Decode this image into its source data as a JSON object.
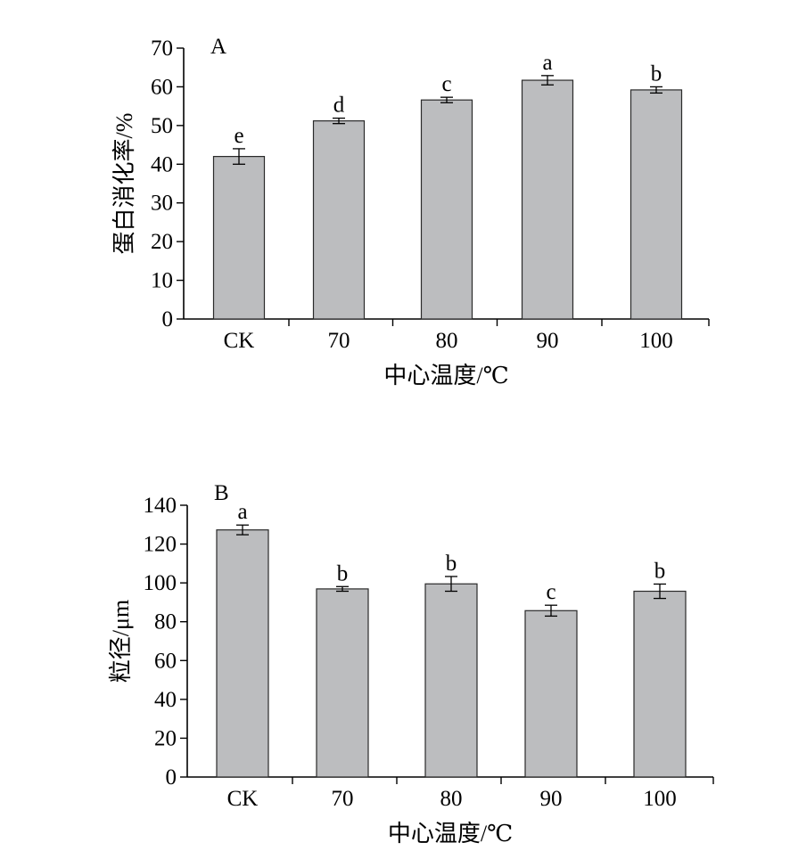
{
  "colors": {
    "bar_fill": "#bcbdbf",
    "bar_stroke": "#2a2a2a",
    "axis": "#000000"
  },
  "chart_data": [
    {
      "type": "bar",
      "panel_label": "A",
      "categories": [
        "CK",
        "70",
        "80",
        "90",
        "100"
      ],
      "values": [
        42.0,
        51.2,
        56.6,
        61.7,
        59.2
      ],
      "errors": [
        2.0,
        0.7,
        0.7,
        1.2,
        0.8
      ],
      "significance": [
        "e",
        "d",
        "c",
        "a",
        "b"
      ],
      "xlabel": "中心温度/℃",
      "ylabel": "蛋白消化率/%",
      "ylim": [
        0,
        70
      ],
      "yticks": [
        0,
        10,
        20,
        30,
        40,
        50,
        60,
        70
      ],
      "grid": false,
      "legend": "none"
    },
    {
      "type": "bar",
      "panel_label": "B",
      "categories": [
        "CK",
        "70",
        "80",
        "90",
        "100"
      ],
      "values": [
        127.3,
        96.9,
        99.5,
        85.7,
        95.7
      ],
      "errors": [
        2.5,
        1.2,
        3.8,
        2.8,
        3.7
      ],
      "significance": [
        "a",
        "b",
        "b",
        "c",
        "b"
      ],
      "xlabel": "中心温度/℃",
      "ylabel": "粒径/μm",
      "ylim": [
        0,
        140
      ],
      "yticks": [
        0,
        20,
        40,
        60,
        80,
        100,
        120,
        140
      ],
      "grid": false,
      "legend": "none"
    }
  ]
}
